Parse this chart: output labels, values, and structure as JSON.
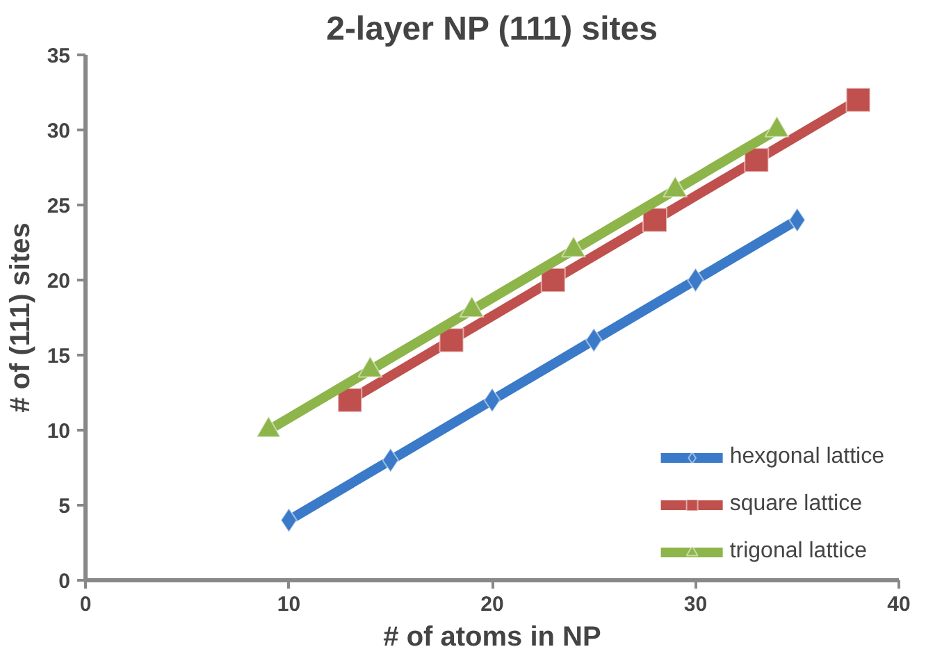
{
  "chart_data": {
    "type": "line",
    "title": "2-layer NP (111) sites",
    "xlabel": "# of atoms in NP",
    "ylabel": "# of (111) sites",
    "xlim": [
      0,
      40
    ],
    "xticks": [
      0,
      10,
      20,
      30,
      40
    ],
    "ylim": [
      0,
      35
    ],
    "yticks": [
      0,
      5,
      10,
      15,
      20,
      25,
      30,
      35
    ],
    "grid": false,
    "legend": "bottom right",
    "series": [
      {
        "name": "hexgonal lattice",
        "color": "#3a7ac8",
        "marker": "diamond",
        "x": [
          10,
          15,
          20,
          25,
          30,
          35
        ],
        "values": [
          4,
          8,
          12,
          16,
          20,
          24
        ]
      },
      {
        "name": "square lattice",
        "color": "#c0504d",
        "marker": "square",
        "x": [
          13,
          18,
          23,
          28,
          33,
          38
        ],
        "values": [
          12,
          16,
          20,
          24,
          28,
          32
        ]
      },
      {
        "name": "trigonal lattice",
        "color": "#8db54a",
        "marker": "triangle",
        "x": [
          9,
          14,
          19,
          24,
          29,
          34
        ],
        "values": [
          10,
          14,
          18,
          22,
          26,
          30
        ]
      }
    ]
  }
}
